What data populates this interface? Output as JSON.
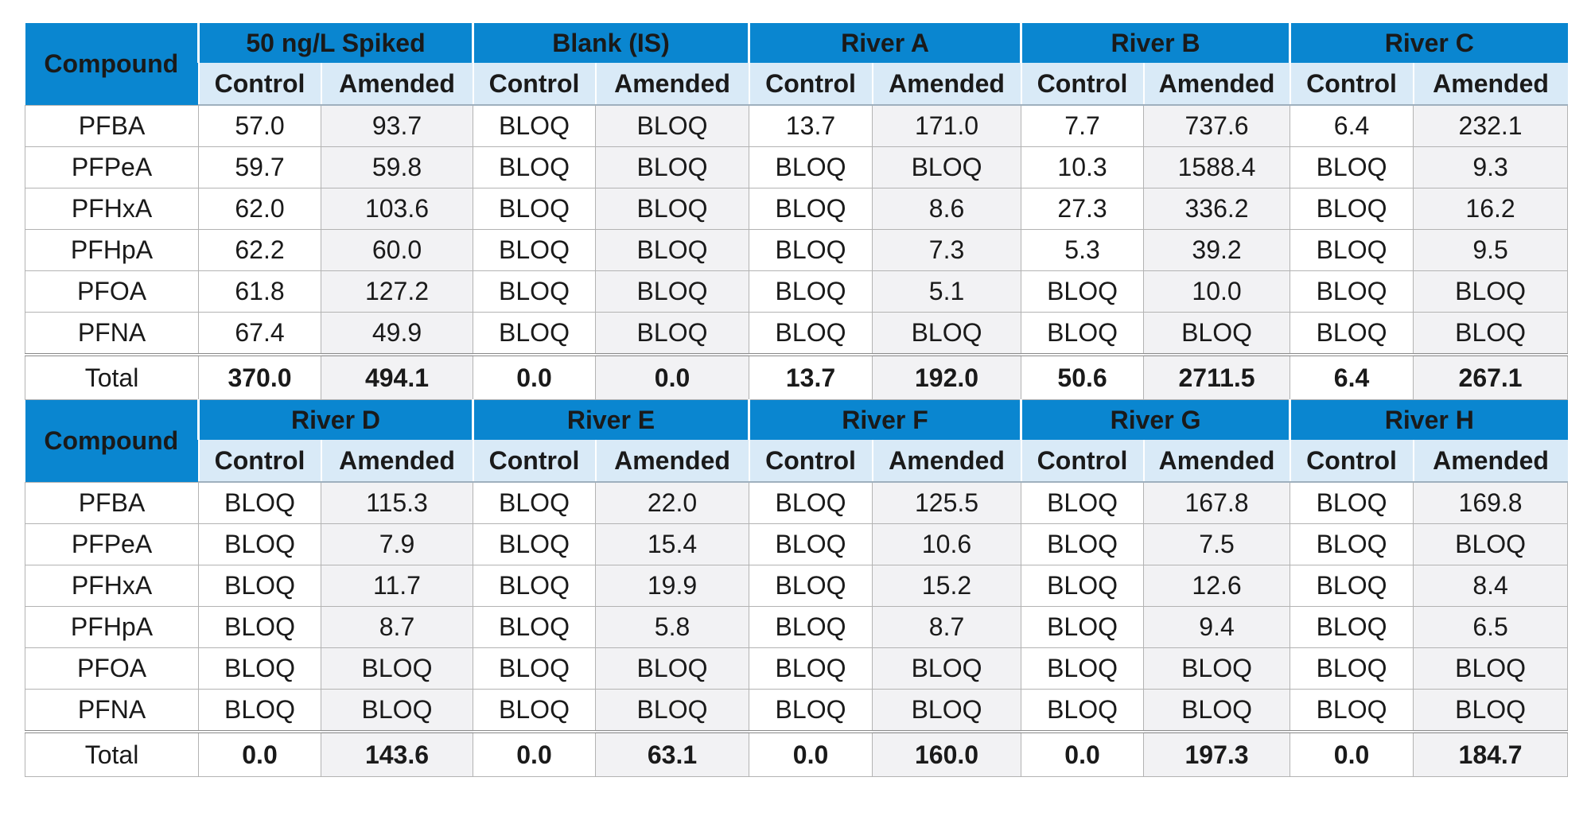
{
  "compound_label": "Compound",
  "sub_labels": {
    "control": "Control",
    "amended": "Amended"
  },
  "total_label": "Total",
  "colors": {
    "header_blue": "#0a86d0",
    "subheader_blue": "#d9eaf7",
    "amended_bg": "#f2f2f4"
  },
  "blocks": [
    {
      "groups": [
        "50 ng/L Spiked",
        "Blank (IS)",
        "River A",
        "River B",
        "River C"
      ],
      "rows": [
        {
          "compound": "PFBA",
          "values": [
            "57.0",
            "93.7",
            "BLOQ",
            "BLOQ",
            "13.7",
            "171.0",
            "7.7",
            "737.6",
            "6.4",
            "232.1"
          ]
        },
        {
          "compound": "PFPeA",
          "values": [
            "59.7",
            "59.8",
            "BLOQ",
            "BLOQ",
            "BLOQ",
            "BLOQ",
            "10.3",
            "1588.4",
            "BLOQ",
            "9.3"
          ]
        },
        {
          "compound": "PFHxA",
          "values": [
            "62.0",
            "103.6",
            "BLOQ",
            "BLOQ",
            "BLOQ",
            "8.6",
            "27.3",
            "336.2",
            "BLOQ",
            "16.2"
          ]
        },
        {
          "compound": "PFHpA",
          "values": [
            "62.2",
            "60.0",
            "BLOQ",
            "BLOQ",
            "BLOQ",
            "7.3",
            "5.3",
            "39.2",
            "BLOQ",
            "9.5"
          ]
        },
        {
          "compound": "PFOA",
          "values": [
            "61.8",
            "127.2",
            "BLOQ",
            "BLOQ",
            "BLOQ",
            "5.1",
            "BLOQ",
            "10.0",
            "BLOQ",
            "BLOQ"
          ]
        },
        {
          "compound": "PFNA",
          "values": [
            "67.4",
            "49.9",
            "BLOQ",
            "BLOQ",
            "BLOQ",
            "BLOQ",
            "BLOQ",
            "BLOQ",
            "BLOQ",
            "BLOQ"
          ]
        }
      ],
      "totals": [
        "370.0",
        "494.1",
        "0.0",
        "0.0",
        "13.7",
        "192.0",
        "50.6",
        "2711.5",
        "6.4",
        "267.1"
      ]
    },
    {
      "groups": [
        "River D",
        "River E",
        "River F",
        "River G",
        "River H"
      ],
      "rows": [
        {
          "compound": "PFBA",
          "values": [
            "BLOQ",
            "115.3",
            "BLOQ",
            "22.0",
            "BLOQ",
            "125.5",
            "BLOQ",
            "167.8",
            "BLOQ",
            "169.8"
          ]
        },
        {
          "compound": "PFPeA",
          "values": [
            "BLOQ",
            "7.9",
            "BLOQ",
            "15.4",
            "BLOQ",
            "10.6",
            "BLOQ",
            "7.5",
            "BLOQ",
            "BLOQ"
          ]
        },
        {
          "compound": "PFHxA",
          "values": [
            "BLOQ",
            "11.7",
            "BLOQ",
            "19.9",
            "BLOQ",
            "15.2",
            "BLOQ",
            "12.6",
            "BLOQ",
            "8.4"
          ]
        },
        {
          "compound": "PFHpA",
          "values": [
            "BLOQ",
            "8.7",
            "BLOQ",
            "5.8",
            "BLOQ",
            "8.7",
            "BLOQ",
            "9.4",
            "BLOQ",
            "6.5"
          ]
        },
        {
          "compound": "PFOA",
          "values": [
            "BLOQ",
            "BLOQ",
            "BLOQ",
            "BLOQ",
            "BLOQ",
            "BLOQ",
            "BLOQ",
            "BLOQ",
            "BLOQ",
            "BLOQ"
          ]
        },
        {
          "compound": "PFNA",
          "values": [
            "BLOQ",
            "BLOQ",
            "BLOQ",
            "BLOQ",
            "BLOQ",
            "BLOQ",
            "BLOQ",
            "BLOQ",
            "BLOQ",
            "BLOQ"
          ]
        }
      ],
      "totals": [
        "0.0",
        "143.6",
        "0.0",
        "63.1",
        "0.0",
        "160.0",
        "0.0",
        "197.3",
        "0.0",
        "184.7"
      ]
    }
  ]
}
